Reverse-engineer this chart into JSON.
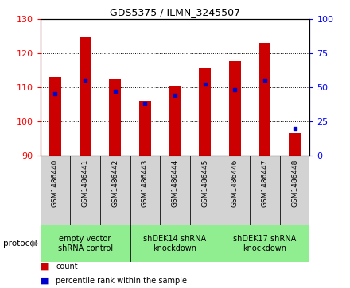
{
  "title": "GDS5375 / ILMN_3245507",
  "samples": [
    "GSM1486440",
    "GSM1486441",
    "GSM1486442",
    "GSM1486443",
    "GSM1486444",
    "GSM1486445",
    "GSM1486446",
    "GSM1486447",
    "GSM1486448"
  ],
  "counts": [
    113.0,
    124.5,
    112.5,
    106.0,
    110.5,
    115.5,
    117.5,
    123.0,
    96.5
  ],
  "percentile_ranks": [
    45,
    55,
    47,
    38,
    44,
    52,
    48,
    55,
    20
  ],
  "ylim_left": [
    90,
    130
  ],
  "ylim_right": [
    0,
    100
  ],
  "yticks_left": [
    90,
    100,
    110,
    120,
    130
  ],
  "yticks_right": [
    0,
    25,
    50,
    75,
    100
  ],
  "bar_color": "#cc0000",
  "dot_color": "#0000cc",
  "bar_bottom": 90,
  "protocol_groups": [
    {
      "label": "empty vector\nshRNA control",
      "start": 0,
      "end": 3,
      "color": "#90ee90"
    },
    {
      "label": "shDEK14 shRNA\nknockdown",
      "start": 3,
      "end": 6,
      "color": "#90ee90"
    },
    {
      "label": "shDEK17 shRNA\nknockdown",
      "start": 6,
      "end": 9,
      "color": "#90ee90"
    }
  ],
  "legend_count_label": "count",
  "legend_pct_label": "percentile rank within the sample",
  "protocol_label": "protocol",
  "sample_box_color": "#d3d3d3",
  "grid_color": "#000000",
  "bar_width": 0.4
}
